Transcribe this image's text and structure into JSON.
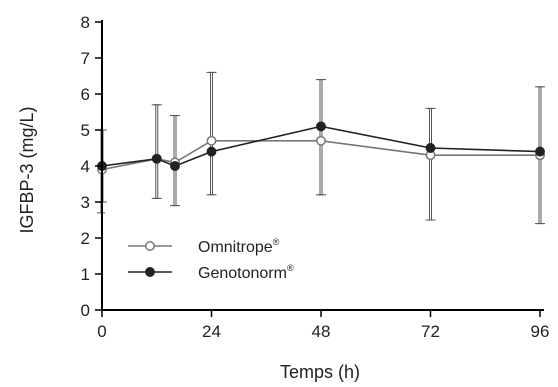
{
  "chart_data": {
    "type": "line",
    "title": "",
    "xlabel": "Temps (h)",
    "ylabel": "IGFBP-3 (mg/L)",
    "xlim": [
      0,
      96
    ],
    "ylim": [
      0,
      8
    ],
    "xticks": [
      0,
      24,
      48,
      72,
      96
    ],
    "yticks": [
      0,
      1,
      2,
      3,
      4,
      5,
      6,
      7,
      8
    ],
    "grid": false,
    "legend_position": "bottom-left",
    "series": [
      {
        "name": "Omnitrope",
        "marker": "open-circle",
        "color": "#777777",
        "x": [
          0,
          12,
          16,
          24,
          48,
          72,
          96
        ],
        "y": [
          3.9,
          4.2,
          4.1,
          4.7,
          4.7,
          4.3,
          4.3
        ],
        "err_low": [
          2.7,
          3.1,
          2.9,
          3.2,
          3.2,
          2.5,
          2.4
        ],
        "err_high": [
          5.0,
          5.7,
          5.4,
          6.6,
          6.4,
          5.6,
          6.2
        ]
      },
      {
        "name": "Genotonorm",
        "marker": "filled-circle",
        "color": "#222222",
        "x": [
          0,
          12,
          16,
          24,
          48,
          72,
          96
        ],
        "y": [
          4.0,
          4.2,
          4.0,
          4.4,
          5.1,
          4.5,
          4.4
        ],
        "err_low": [
          3.0,
          3.1,
          2.9,
          3.2,
          3.2,
          2.5,
          2.4
        ],
        "err_high": [
          5.0,
          5.7,
          5.4,
          6.6,
          6.4,
          5.6,
          6.2
        ]
      }
    ]
  }
}
